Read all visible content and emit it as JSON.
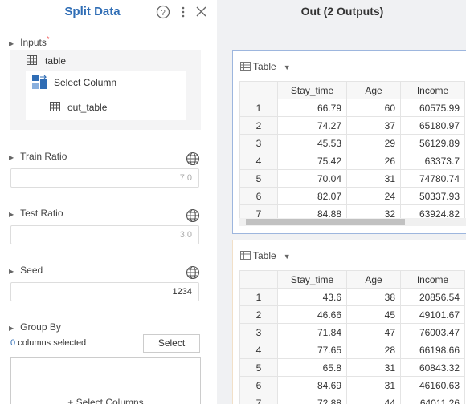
{
  "left_panel": {
    "title": "Split Data",
    "inputs": {
      "label": "Inputs",
      "required": "*",
      "source": "table",
      "operator": "Select Column",
      "output": "out_table"
    },
    "train_ratio": {
      "label": "Train Ratio",
      "placeholder": "7.0"
    },
    "test_ratio": {
      "label": "Test Ratio",
      "placeholder": "3.0"
    },
    "seed": {
      "label": "Seed",
      "value": "1234"
    },
    "group_by": {
      "label": "Group By",
      "count": "0",
      "count_text": "columns selected",
      "button": "Select",
      "add": "+ Select Columns"
    }
  },
  "right_panel": {
    "title": "Out (2 Outputs)",
    "tables": [
      {
        "label": "Table",
        "columns": [
          "Stay_time",
          "Age",
          "Income"
        ],
        "rows": [
          [
            "1",
            "66.79",
            "60",
            "60575.99"
          ],
          [
            "2",
            "74.27",
            "37",
            "65180.97"
          ],
          [
            "3",
            "45.53",
            "29",
            "56129.89"
          ],
          [
            "4",
            "75.42",
            "26",
            "63373.7"
          ],
          [
            "5",
            "70.04",
            "31",
            "74780.74"
          ],
          [
            "6",
            "82.07",
            "24",
            "50337.93"
          ],
          [
            "7",
            "84.88",
            "32",
            "63924.82"
          ]
        ]
      },
      {
        "label": "Table",
        "columns": [
          "Stay_time",
          "Age",
          "Income"
        ],
        "rows": [
          [
            "1",
            "43.6",
            "38",
            "20856.54"
          ],
          [
            "2",
            "46.66",
            "45",
            "49101.67"
          ],
          [
            "3",
            "71.84",
            "47",
            "76003.47"
          ],
          [
            "4",
            "77.65",
            "28",
            "66198.66"
          ],
          [
            "5",
            "65.8",
            "31",
            "60843.32"
          ],
          [
            "6",
            "84.69",
            "31",
            "46160.63"
          ],
          [
            "7",
            "72.88",
            "44",
            "64011.26"
          ]
        ]
      }
    ]
  }
}
